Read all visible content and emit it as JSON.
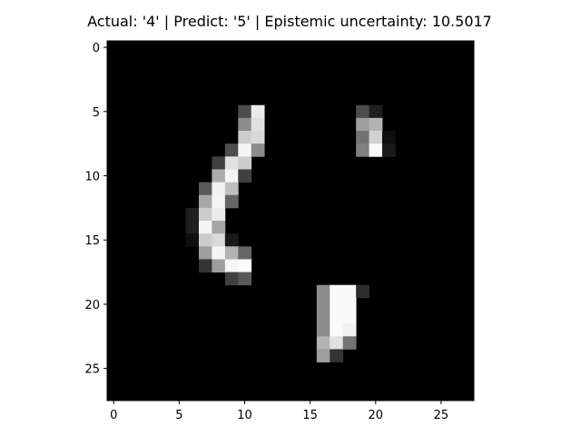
{
  "chart_data": {
    "type": "heatmap",
    "title": "Actual: '4' | Predict: '5' | Epistemic uncertainty: 10.5017",
    "xlabel": "",
    "ylabel": "",
    "colormap": "gray",
    "value_range": [
      0,
      1
    ],
    "xlim": [
      -0.5,
      27.5
    ],
    "ylim": [
      27.5,
      -0.5
    ],
    "xticks": [
      0,
      5,
      10,
      15,
      20,
      25
    ],
    "yticks": [
      0,
      5,
      10,
      15,
      20,
      25
    ],
    "xtick_labels": [
      "0",
      "5",
      "10",
      "15",
      "20",
      "25"
    ],
    "ytick_labels": [
      "0",
      "5",
      "10",
      "15",
      "20",
      "25"
    ],
    "grid": false,
    "rows": 28,
    "cols": 28,
    "nonzero_pixels": [
      [
        5,
        10,
        0.3
      ],
      [
        5,
        11,
        0.92
      ],
      [
        5,
        19,
        0.3
      ],
      [
        5,
        20,
        0.12
      ],
      [
        6,
        10,
        0.55
      ],
      [
        6,
        11,
        0.88
      ],
      [
        6,
        19,
        0.62
      ],
      [
        6,
        20,
        0.7
      ],
      [
        7,
        10,
        0.8
      ],
      [
        7,
        11,
        0.85
      ],
      [
        7,
        19,
        0.45
      ],
      [
        7,
        20,
        0.82
      ],
      [
        7,
        21,
        0.06
      ],
      [
        8,
        9,
        0.3
      ],
      [
        8,
        10,
        0.96
      ],
      [
        8,
        11,
        0.55
      ],
      [
        8,
        19,
        0.5
      ],
      [
        8,
        20,
        0.98
      ],
      [
        8,
        21,
        0.1
      ],
      [
        9,
        8,
        0.25
      ],
      [
        9,
        9,
        0.88
      ],
      [
        9,
        10,
        0.8
      ],
      [
        10,
        8,
        0.68
      ],
      [
        10,
        9,
        0.96
      ],
      [
        10,
        10,
        0.25
      ],
      [
        11,
        7,
        0.35
      ],
      [
        11,
        8,
        0.95
      ],
      [
        11,
        9,
        0.75
      ],
      [
        12,
        7,
        0.65
      ],
      [
        12,
        8,
        0.96
      ],
      [
        12,
        9,
        0.4
      ],
      [
        13,
        6,
        0.12
      ],
      [
        13,
        7,
        0.8
      ],
      [
        13,
        8,
        0.92
      ],
      [
        14,
        6,
        0.12
      ],
      [
        14,
        7,
        0.96
      ],
      [
        14,
        8,
        0.65
      ],
      [
        15,
        6,
        0.06
      ],
      [
        15,
        7,
        0.8
      ],
      [
        15,
        8,
        0.85
      ],
      [
        15,
        9,
        0.1
      ],
      [
        16,
        7,
        0.62
      ],
      [
        16,
        8,
        0.96
      ],
      [
        16,
        9,
        0.7
      ],
      [
        16,
        10,
        0.4
      ],
      [
        17,
        7,
        0.2
      ],
      [
        17,
        8,
        0.62
      ],
      [
        17,
        9,
        0.96
      ],
      [
        17,
        10,
        0.98
      ],
      [
        18,
        9,
        0.25
      ],
      [
        18,
        10,
        0.35
      ],
      [
        19,
        16,
        0.55
      ],
      [
        19,
        17,
        0.98
      ],
      [
        19,
        18,
        0.98
      ],
      [
        19,
        19,
        0.18
      ],
      [
        20,
        16,
        0.55
      ],
      [
        20,
        17,
        0.98
      ],
      [
        20,
        18,
        0.98
      ],
      [
        21,
        16,
        0.55
      ],
      [
        21,
        17,
        0.98
      ],
      [
        21,
        18,
        0.98
      ],
      [
        22,
        16,
        0.55
      ],
      [
        22,
        17,
        0.98
      ],
      [
        22,
        18,
        0.95
      ],
      [
        23,
        16,
        0.7
      ],
      [
        23,
        17,
        0.88
      ],
      [
        23,
        18,
        0.45
      ],
      [
        24,
        16,
        0.62
      ],
      [
        24,
        17,
        0.2
      ]
    ]
  }
}
